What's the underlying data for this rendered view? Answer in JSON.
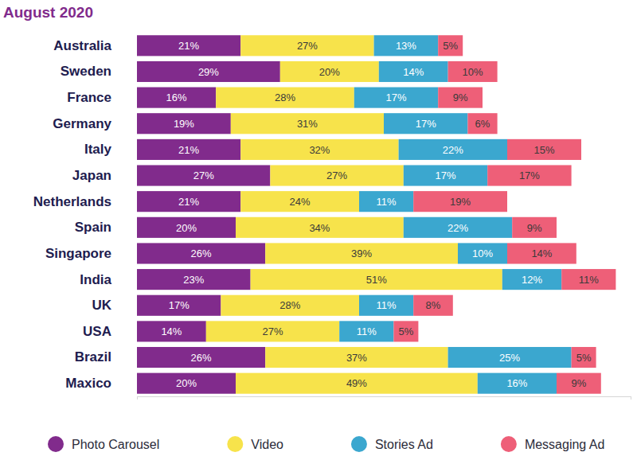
{
  "chart_data": {
    "type": "bar",
    "title": "August 2020",
    "orientation": "horizontal",
    "stacked": true,
    "data_labels": true,
    "tick_labels": "y",
    "grid": false,
    "legend": "bottom",
    "categories": [
      "Australia",
      "Sweden",
      "France",
      "Germany",
      "Italy",
      "Japan",
      "Netherlands",
      "Spain",
      "Singapore",
      "India",
      "UK",
      "USA",
      "Brazil",
      "Maxico"
    ],
    "xlim": [
      0,
      100
    ],
    "xticks": [
      0,
      100
    ],
    "series": [
      {
        "name": "Photo Carousel",
        "color": "#812b8c",
        "values": [
          21,
          29,
          16,
          19,
          21,
          27,
          21,
          20,
          26,
          23,
          17,
          14,
          26,
          20
        ],
        "value_labels": [
          "21%",
          "29%",
          "16%",
          "19%",
          "21%",
          "27%",
          "21%",
          "20%",
          "26%",
          "23%",
          "17%",
          "14%",
          "26%",
          "20%"
        ]
      },
      {
        "name": "Video",
        "color": "#f7e34b",
        "values": [
          27,
          20,
          28,
          31,
          32,
          27,
          24,
          34,
          39,
          51,
          28,
          27,
          37,
          49
        ],
        "value_labels": [
          "27%",
          "20%",
          "28%",
          "31%",
          "32%",
          "27%",
          "24%",
          "34%",
          "39%",
          "51%",
          "28%",
          "27%",
          "37%",
          "49%"
        ]
      },
      {
        "name": "Stories Ad",
        "color": "#3ba7cf",
        "values": [
          13,
          14,
          17,
          17,
          22,
          17,
          11,
          22,
          10,
          12,
          11,
          11,
          25,
          16
        ],
        "value_labels": [
          "13%",
          "14%",
          "17%",
          "17%",
          "22%",
          "17%",
          "11%",
          "22%",
          "10%",
          "12%",
          "11%",
          "11%",
          "25%",
          "16%"
        ]
      },
      {
        "name": "Messaging Ad",
        "color": "#ee5f78",
        "values": [
          5,
          10,
          9,
          6,
          15,
          17,
          19,
          9,
          14,
          11,
          8,
          5,
          5,
          9
        ],
        "value_labels": [
          "5%",
          "10%",
          "9%",
          "6%",
          "15%",
          "17%",
          "19%",
          "9%",
          "14%",
          "11%",
          "8%",
          "5%",
          "5%",
          "9%"
        ]
      }
    ]
  }
}
